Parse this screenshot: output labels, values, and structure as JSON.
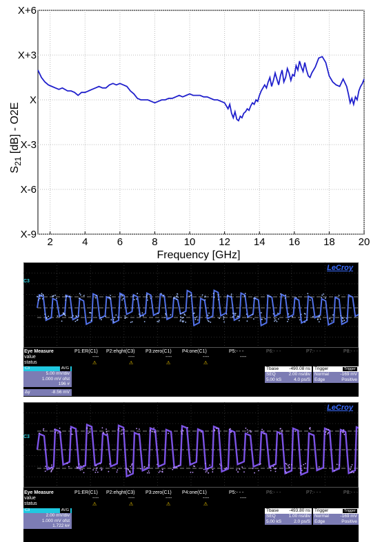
{
  "chart_data": {
    "type": "line",
    "title": "",
    "xlabel": "Frequency [GHz]",
    "ylabel": "S21 [dB] - O2E",
    "xlim": [
      1.3,
      20
    ],
    "ylim": [
      -9,
      6
    ],
    "x_ticks": [
      2,
      4,
      6,
      8,
      10,
      12,
      14,
      16,
      18,
      20
    ],
    "x_tick_labels": [
      "2",
      "4",
      "6",
      "8",
      "10",
      "12",
      "14",
      "16",
      "18",
      "20"
    ],
    "y_ticks": [
      6,
      3,
      0,
      -3,
      -6,
      -9
    ],
    "y_tick_labels": [
      "X+6",
      "X+3",
      "X",
      "X-3",
      "X-6",
      "X-9"
    ],
    "grid": true,
    "color": "#1f1fcc",
    "series": [
      {
        "x": [
          1.3,
          1.5,
          1.7,
          1.9,
          2.1,
          2.3,
          2.5,
          2.7,
          3.0,
          3.2,
          3.4,
          3.6,
          3.8,
          4.0,
          4.2,
          4.4,
          4.6,
          4.8,
          5.0,
          5.2,
          5.4,
          5.6,
          5.8,
          6.0,
          6.2,
          6.4,
          6.6,
          6.8,
          7.0,
          7.2,
          7.4,
          7.6,
          7.8,
          8.0,
          8.2,
          8.4,
          8.6,
          8.8,
          9.0,
          9.2,
          9.4,
          9.6,
          9.8,
          10.0,
          10.2,
          10.4,
          10.6,
          10.8,
          11.0,
          11.2,
          11.4,
          11.6,
          11.8,
          12.0,
          12.1,
          12.2,
          12.3,
          12.4,
          12.5,
          12.6,
          12.7,
          12.8,
          12.9,
          13.0,
          13.1,
          13.2,
          13.3,
          13.4,
          13.5,
          13.6,
          13.7,
          13.8,
          13.9,
          14.0,
          14.1,
          14.2,
          14.3,
          14.4,
          14.5,
          14.6,
          14.7,
          14.8,
          14.9,
          15.0,
          15.1,
          15.2,
          15.3,
          15.4,
          15.5,
          15.6,
          15.7,
          15.8,
          15.9,
          16.0,
          16.1,
          16.2,
          16.3,
          16.4,
          16.5,
          16.6,
          16.7,
          16.8,
          16.9,
          17.0,
          17.2,
          17.4,
          17.6,
          17.8,
          18.0,
          18.2,
          18.4,
          18.6,
          18.8,
          19.0,
          19.1,
          19.2,
          19.3,
          19.4,
          19.5,
          19.6,
          19.7,
          19.8,
          19.9,
          20.0
        ],
        "y": [
          2.0,
          1.5,
          1.2,
          1.0,
          0.9,
          0.8,
          0.7,
          0.8,
          0.6,
          0.6,
          0.5,
          0.3,
          0.5,
          0.5,
          0.6,
          0.7,
          0.8,
          0.9,
          0.8,
          0.8,
          1.0,
          1.1,
          1.0,
          1.1,
          1.0,
          0.9,
          0.6,
          0.4,
          0.1,
          0.0,
          0.0,
          0.0,
          -0.1,
          -0.2,
          -0.1,
          0.0,
          0.0,
          0.1,
          0.1,
          0.2,
          0.3,
          0.2,
          0.3,
          0.4,
          0.3,
          0.3,
          0.3,
          0.2,
          0.2,
          0.1,
          0.0,
          0.0,
          -0.1,
          -0.2,
          -0.4,
          -0.6,
          -0.3,
          -0.9,
          -1.2,
          -0.8,
          -1.3,
          -1.4,
          -1.1,
          -1.2,
          -0.9,
          -0.8,
          -0.6,
          -0.7,
          -0.4,
          -0.2,
          -0.3,
          0.0,
          -0.1,
          0.3,
          0.6,
          0.8,
          1.0,
          0.8,
          1.2,
          1.5,
          0.9,
          1.3,
          1.8,
          1.4,
          1.0,
          1.6,
          2.0,
          1.2,
          1.5,
          2.1,
          1.8,
          1.3,
          1.7,
          1.6,
          2.3,
          2.0,
          2.6,
          2.2,
          1.9,
          2.5,
          2.0,
          1.6,
          1.5,
          1.8,
          2.2,
          2.8,
          2.9,
          2.5,
          1.6,
          1.2,
          1.0,
          0.9,
          1.4,
          0.9,
          0.4,
          -0.2,
          0.1,
          -0.3,
          0.2,
          0.0,
          0.6,
          0.9,
          1.1,
          1.4
        ]
      }
    ]
  },
  "scope_panels": [
    {
      "brand": "LeCroy",
      "channel_marker": "C3",
      "waveform_color": "#5a7cff",
      "measure_header": "Eye Measure",
      "params": [
        "P1:ER(C1)",
        "P2:ehght(C3)",
        "P3:zero(C1)",
        "P4:one(C1)",
        "P5:- - -",
        "P6:- - -",
        "P7:- - -",
        "P8:- - -"
      ],
      "values": [
        "----",
        "----",
        "----",
        "----",
        "----"
      ],
      "row_labels": [
        "value",
        "status"
      ],
      "warn_symbol": "⚠",
      "channel_box": {
        "name": "C3",
        "tag": "AVG",
        "lines": [
          "5.00 mV/div",
          "1.000 mV ofst",
          "196 #"
        ]
      },
      "dy": {
        "label": "Δy",
        "value": "-8.56 mV"
      },
      "timebase": {
        "label": "Tbase",
        "value": "-490.08 ns",
        "mode": "SEQ",
        "per_div": "2.00 ns/div",
        "samples": "5.00 kS",
        "rate": "4.0 ps/S"
      },
      "trigger": {
        "label": "Trigger",
        "tag": "Trigger",
        "mode": "Normal",
        "level": "-169 mV",
        "type": "Edge",
        "slope": "Positive"
      }
    },
    {
      "brand": "LeCroy",
      "channel_marker": "C3",
      "waveform_color": "#8a5cff",
      "measure_header": "Eye Measure",
      "params": [
        "P1:ER(C1)",
        "P2:ehght(C3)",
        "P3:zero(C1)",
        "P4:one(C1)",
        "P5:- - -",
        "P6:- - -",
        "P7:- - -",
        "P8:- - -"
      ],
      "values": [
        "----",
        "----",
        "----",
        "----",
        "----"
      ],
      "row_labels": [
        "value",
        "status"
      ],
      "warn_symbol": "⚠",
      "channel_box": {
        "name": "C3",
        "tag": "AVG",
        "lines": [
          "2.00 mV/div",
          "1.000 mV ofst",
          "1.722 k#"
        ]
      },
      "timebase": {
        "label": "Tbase",
        "value": "-493.80 ns",
        "mode": "SEQ",
        "per_div": "1.00 ns/div",
        "samples": "5.00 kS",
        "rate": "2.0 ps/S"
      },
      "trigger": {
        "label": "Trigger",
        "tag": "Trigger",
        "mode": "Normal",
        "level": "-169 mV",
        "type": "Edge",
        "slope": "Positive"
      }
    }
  ]
}
